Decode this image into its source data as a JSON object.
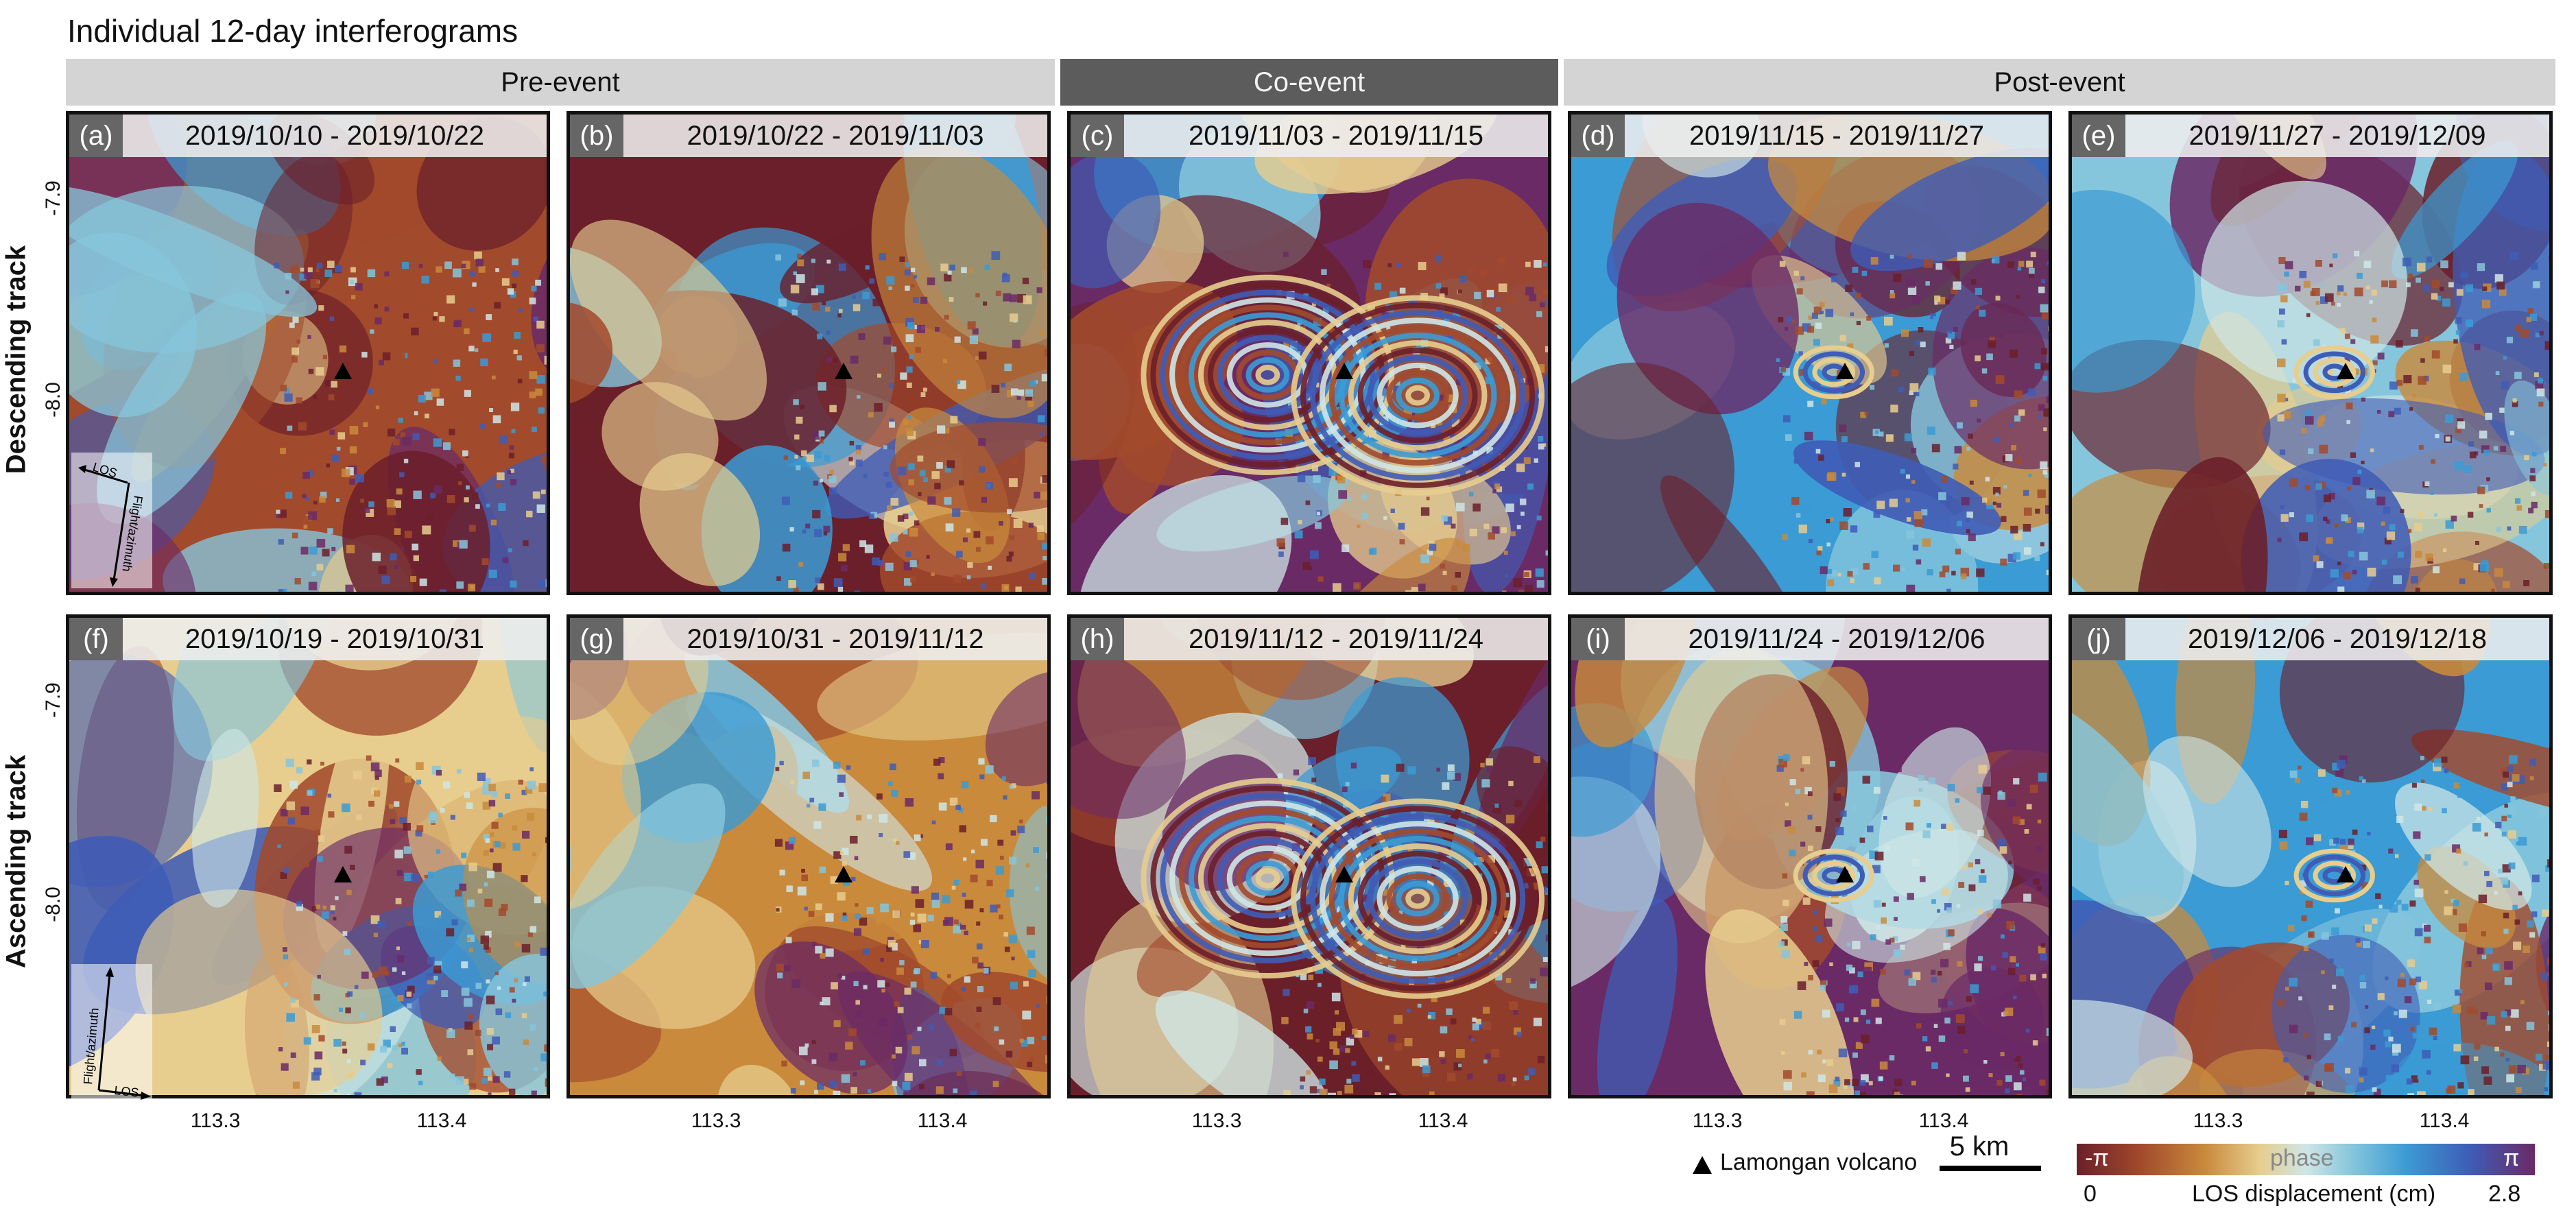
{
  "figure": {
    "title": "Individual 12-day interferograms",
    "groups": [
      "Pre-event",
      "Co-event",
      "Post-event"
    ],
    "rows": [
      "Descending track",
      "Ascending track"
    ],
    "latitude_ticks": [
      "-7.9",
      "-8.0"
    ],
    "longitude_ticks": [
      "113.3",
      "113.4"
    ]
  },
  "panels": [
    {
      "letter": "(a)",
      "dates": "2019/10/10 - 2019/10/22",
      "event": "pre",
      "track": "descending"
    },
    {
      "letter": "(b)",
      "dates": "2019/10/22 - 2019/11/03",
      "event": "pre",
      "track": "descending"
    },
    {
      "letter": "(c)",
      "dates": "2019/11/03 - 2019/11/15",
      "event": "co",
      "track": "descending"
    },
    {
      "letter": "(d)",
      "dates": "2019/11/15 - 2019/11/27",
      "event": "post",
      "track": "descending"
    },
    {
      "letter": "(e)",
      "dates": "2019/11/27 - 2019/12/09",
      "event": "post",
      "track": "descending"
    },
    {
      "letter": "(f)",
      "dates": "2019/10/19 - 2019/10/31",
      "event": "pre",
      "track": "ascending"
    },
    {
      "letter": "(g)",
      "dates": "2019/10/31 - 2019/11/12",
      "event": "pre",
      "track": "ascending"
    },
    {
      "letter": "(h)",
      "dates": "2019/11/12 - 2019/11/24",
      "event": "co",
      "track": "ascending"
    },
    {
      "letter": "(i)",
      "dates": "2019/11/24 - 2019/12/06",
      "event": "post",
      "track": "ascending"
    },
    {
      "letter": "(j)",
      "dates": "2019/12/06 - 2019/12/18",
      "event": "post",
      "track": "ascending"
    }
  ],
  "insets": {
    "los_label": "LOS",
    "flight_label": "Flight/azimuth"
  },
  "legend": {
    "volcano_label": "Lamongan volcano",
    "scalebar_label": "5 km",
    "colorbar_min_phase": "-π",
    "colorbar_max_phase": "π",
    "colorbar_mid_label": "phase",
    "displacement_min": "0",
    "displacement_max": "2.8",
    "displacement_label": "LOS displacement (cm)"
  },
  "colors": {
    "phase_ramp": [
      "#6b1f2a",
      "#a24a2c",
      "#c98a3c",
      "#e7cd8e",
      "#cfe6e6",
      "#86c6dc",
      "#3b9bd4",
      "#3f5cb6",
      "#6a2a66"
    ],
    "header_light": "#d4d4d4",
    "header_dark": "#5c5c5c"
  }
}
